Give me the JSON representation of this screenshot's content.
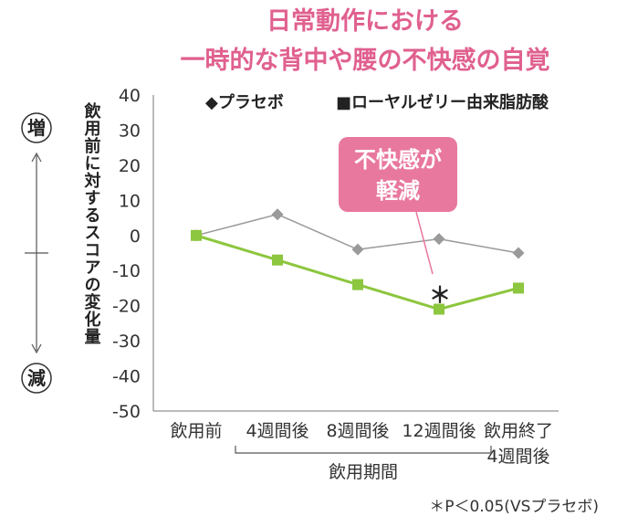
{
  "chart_data": {
    "type": "line",
    "title": [
      "日常動作における",
      "一時的な背中や腰の不快感の自覚"
    ],
    "ylabel": "飲用前に対するスコアの変化量",
    "y_ticks": [
      "40",
      "30",
      "20",
      "10",
      "0",
      "-10",
      "-20",
      "-30",
      "-40",
      "-50"
    ],
    "ylim": [
      -50,
      40
    ],
    "categories": [
      "飲用前",
      "4週間後",
      "8週間後",
      "12週間後",
      "飲用終了4週間後"
    ],
    "category_labels": [
      [
        "飲用前"
      ],
      [
        "4週間後"
      ],
      [
        "8週間後"
      ],
      [
        "12週間後"
      ],
      [
        "飲用終了",
        "4週間後"
      ]
    ],
    "period_label": "飲用期間",
    "series": [
      {
        "name": "プラセボ",
        "marker": "diamond",
        "color": "#9a9a9a",
        "values": [
          0,
          6,
          -4,
          -1,
          -5
        ]
      },
      {
        "name": "ローヤルゼリー由来脂肪酸",
        "marker": "square",
        "color": "#8dc63f",
        "values": [
          0,
          -7,
          -14,
          -21,
          -15
        ]
      }
    ],
    "legend": {
      "placement": "top",
      "items": [
        "◆プラセボ",
        "■ローヤルゼリー由来脂肪酸"
      ]
    },
    "annotation": {
      "lines": [
        "不快感が",
        "軽減"
      ],
      "marker": "＊",
      "color": "#e8789e"
    },
    "left_scale": {
      "top": "増",
      "bottom": "減"
    },
    "footnote": "＊P＜0.05(VSプラセボ)"
  }
}
